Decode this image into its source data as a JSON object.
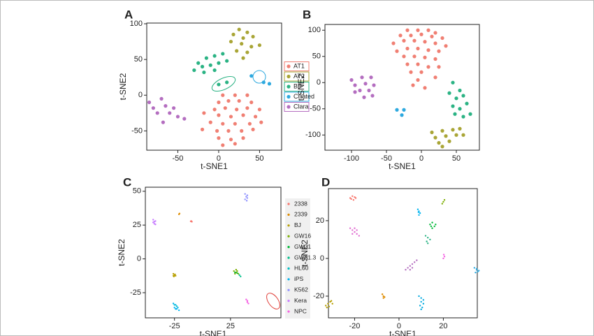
{
  "chart_data": [
    {
      "type": "scatter",
      "panel": "A",
      "x_label": "t-SNE1",
      "y_label": "t-SNE2",
      "xlim": [
        -88,
        77
      ],
      "ylim": [
        -77,
        101
      ],
      "xticks": [
        -50,
        0,
        50
      ],
      "yticks": [
        -50,
        0,
        50,
        100
      ],
      "legend": "right-box",
      "series": [
        {
          "name": "AT1",
          "color": "#f07f73",
          "x": [
            5,
            20,
            35,
            0,
            12,
            25,
            40,
            -5,
            8,
            22,
            35,
            50,
            -18,
            0,
            15,
            30,
            45,
            -10,
            5,
            20,
            38,
            52,
            -20,
            -2,
            12,
            28,
            42,
            0,
            15,
            30,
            5,
            20
          ],
          "y": [
            0,
            0,
            0,
            -10,
            -8,
            -8,
            -10,
            -20,
            -18,
            -20,
            -18,
            -20,
            -25,
            -28,
            -30,
            -28,
            -30,
            -38,
            -40,
            -40,
            -40,
            -38,
            -48,
            -50,
            -50,
            -50,
            -48,
            -60,
            -62,
            -60,
            -70,
            -68
          ]
        },
        {
          "name": "AT2",
          "color": "#a9a536",
          "x": [
            25,
            35,
            18,
            30,
            42,
            15,
            28,
            40,
            50,
            22,
            35,
            30
          ],
          "y": [
            92,
            88,
            85,
            80,
            82,
            75,
            72,
            68,
            70,
            62,
            60,
            52
          ]
        },
        {
          "name": "BP",
          "color": "#2bb384",
          "x": [
            -25,
            -15,
            -5,
            5,
            -20,
            -10,
            0,
            10,
            -30,
            -18,
            -5,
            0,
            10
          ],
          "y": [
            45,
            52,
            55,
            58,
            40,
            42,
            45,
            48,
            35,
            32,
            35,
            15,
            18
          ]
        },
        {
          "name": "Ciliated",
          "color": "#2ea9df",
          "x": [
            40,
            55,
            62
          ],
          "y": [
            27,
            18,
            16
          ]
        },
        {
          "name": "Clara",
          "color": "#b46ec0",
          "x": [
            -85,
            -70,
            -80,
            -65,
            -55,
            -75,
            -60,
            -50,
            -68,
            -42
          ],
          "y": [
            -10,
            -5,
            -18,
            -15,
            -18,
            -25,
            -25,
            -30,
            -38,
            -33
          ]
        }
      ]
    },
    {
      "type": "scatter",
      "panel": "B",
      "x_label": "t-SNE1",
      "y_label": "t-SNE2",
      "xlim": [
        -138,
        83
      ],
      "ylim": [
        -129,
        111
      ],
      "xticks": [
        -100,
        -50,
        0,
        50
      ],
      "yticks": [
        -100,
        -50,
        0,
        50,
        100
      ],
      "series": [
        {
          "color": "#f07f73",
          "x": [
            -20,
            -5,
            10,
            20,
            -30,
            -15,
            0,
            15,
            30,
            -40,
            -25,
            -10,
            5,
            20,
            35,
            -35,
            -20,
            -5,
            10,
            25,
            -25,
            -10,
            5,
            20,
            -20,
            -5,
            10,
            25,
            -15,
            0,
            -5,
            5,
            -12,
            20
          ],
          "y": [
            100,
            100,
            100,
            95,
            90,
            90,
            92,
            88,
            85,
            75,
            80,
            80,
            78,
            75,
            70,
            60,
            65,
            65,
            62,
            60,
            50,
            50,
            48,
            45,
            35,
            35,
            30,
            30,
            20,
            20,
            5,
            -10,
            -5,
            10
          ]
        },
        {
          "color": "#a9a536",
          "x": [
            15,
            30,
            45,
            55,
            20,
            35,
            50,
            60,
            25,
            40,
            30
          ],
          "y": [
            -95,
            -92,
            -90,
            -88,
            -105,
            -102,
            -100,
            -100,
            -115,
            -112,
            -122
          ]
        },
        {
          "color": "#2bb384",
          "x": [
            45,
            55,
            40,
            60,
            50,
            65,
            45,
            55,
            70,
            60,
            48
          ],
          "y": [
            0,
            -15,
            -20,
            -25,
            -30,
            -40,
            -45,
            -50,
            -60,
            -65,
            -60
          ]
        },
        {
          "color": "#2ea9df",
          "x": [
            -35,
            -25,
            -28
          ],
          "y": [
            -52,
            -52,
            -62
          ]
        },
        {
          "color": "#b46ec0",
          "x": [
            -100,
            -85,
            -72,
            -95,
            -80,
            -68,
            -88,
            -75,
            -95,
            -82,
            -70
          ],
          "y": [
            5,
            10,
            10,
            -5,
            -2,
            -5,
            -15,
            -15,
            -18,
            -28,
            -25
          ]
        }
      ]
    },
    {
      "type": "scatter",
      "panel": "C",
      "x_label": "t-SNE1",
      "y_label": "t-SNE2",
      "xlim": [
        -51,
        70
      ],
      "ylim": [
        -43.6,
        53
      ],
      "xticks": [
        -25,
        25
      ],
      "yticks": [
        -25,
        0,
        25,
        50
      ],
      "legend": "right-list",
      "series": [
        {
          "name": "2338",
          "color": "#f8766d",
          "x": [
            -10,
            -9.5,
            -10.5
          ],
          "y": [
            28,
            27.5,
            27.8
          ]
        },
        {
          "name": "2339",
          "color": "#de8c00",
          "x": [
            -21,
            -20.5
          ],
          "y": [
            33,
            33.5
          ]
        },
        {
          "name": "BJ",
          "color": "#b79f00",
          "x": [
            -26,
            -25,
            -24,
            -25.5,
            -24.5,
            -26
          ],
          "y": [
            -11,
            -12,
            -12.5,
            -13,
            -11.5,
            -12.5
          ]
        },
        {
          "name": "GW16",
          "color": "#7cae00",
          "x": [
            28,
            30,
            29,
            31,
            32,
            30
          ],
          "y": [
            -9,
            -10,
            -11,
            -9,
            -11,
            -8
          ]
        },
        {
          "name": "GW21",
          "color": "#00ba38",
          "x": [
            29,
            31
          ],
          "y": [
            -10,
            -10.5
          ]
        },
        {
          "name": "GW21.3",
          "color": "#00c08b",
          "x": [
            33,
            34
          ],
          "y": [
            -12,
            -13
          ]
        },
        {
          "name": "HL60",
          "color": "#00bfc4",
          "x": [
            -25,
            -23
          ],
          "y": [
            -34,
            -35
          ]
        },
        {
          "name": "iPS",
          "color": "#00b4f0",
          "x": [
            -26,
            -24,
            -22,
            -25,
            -23,
            -21,
            -24
          ],
          "y": [
            -33,
            -34,
            -36,
            -36,
            -37,
            -38,
            -37
          ]
        },
        {
          "name": "K562",
          "color": "#8f91ff",
          "x": [
            38,
            39,
            40,
            38,
            39.5,
            40
          ],
          "y": [
            44,
            46,
            47,
            48,
            43,
            45
          ]
        },
        {
          "name": "Kera",
          "color": "#c77cff",
          "x": [
            -44,
            -43,
            -42,
            -44,
            -43,
            -42
          ],
          "y": [
            27,
            26,
            28,
            29,
            27.5,
            25.5
          ]
        },
        {
          "name": "NPC",
          "color": "#f564e3",
          "x": [
            39,
            40,
            41,
            40
          ],
          "y": [
            -30,
            -32,
            -33,
            -31
          ]
        }
      ]
    },
    {
      "type": "scatter",
      "panel": "D",
      "x_label": "t-SNE1",
      "y_label": "t-SNE2",
      "xlim": [
        -31.8,
        35.3
      ],
      "ylim": [
        -31.5,
        37
      ],
      "xticks": [
        -20,
        0,
        20
      ],
      "yticks": [
        -20,
        0,
        20
      ],
      "series": [
        {
          "color": "#f8766d",
          "x": [
            -22,
            -21,
            -20,
            -21.5,
            -20.5,
            -19.5
          ],
          "y": [
            32,
            33,
            32.5,
            31.5,
            31,
            32
          ]
        },
        {
          "color": "#b79f00",
          "x": [
            -33,
            -32,
            -31,
            -30,
            -32.5,
            -31.5,
            -30.5
          ],
          "y": [
            -25,
            -24,
            -23,
            -24,
            -26,
            -25.5,
            -22.5
          ]
        },
        {
          "color": "#de8c00",
          "x": [
            -7.5,
            -7,
            -6.5,
            -7
          ],
          "y": [
            -19,
            -20,
            -20.5,
            -21
          ]
        },
        {
          "color": "#e06bd0",
          "x": [
            -22,
            -21,
            -20,
            -19,
            -18,
            -21,
            -20,
            -19
          ],
          "y": [
            16,
            15,
            14,
            13,
            12,
            13,
            16,
            15
          ]
        },
        {
          "color": "#b46ec0",
          "x": [
            3,
            4,
            5,
            6,
            7,
            8,
            5,
            6
          ],
          "y": [
            -6,
            -5,
            -4,
            -3,
            -2,
            -1,
            -6,
            -5
          ]
        },
        {
          "color": "#00b4f0",
          "x": [
            8.5,
            9,
            9.5,
            9,
            8.8
          ],
          "y": [
            26,
            25,
            24,
            23,
            24.5
          ]
        },
        {
          "color": "#00a9e0",
          "x": [
            9,
            10,
            11,
            10,
            9.5,
            10.5,
            10,
            11
          ],
          "y": [
            -20,
            -21,
            -22,
            -23,
            -25,
            -26,
            -27,
            -24
          ]
        },
        {
          "color": "#00ba38",
          "x": [
            14,
            15,
            16,
            15,
            16.5,
            14.5
          ],
          "y": [
            18,
            19,
            17,
            16,
            18,
            17
          ]
        },
        {
          "color": "#2bb384",
          "x": [
            12,
            13,
            14,
            13,
            12.5
          ],
          "y": [
            12,
            11,
            10,
            8,
            9
          ]
        },
        {
          "color": "#7cae00",
          "x": [
            19.5,
            20,
            20.5
          ],
          "y": [
            29,
            30,
            31
          ]
        },
        {
          "color": "#f564e3",
          "x": [
            20,
            20.5,
            20.2
          ],
          "y": [
            0,
            1,
            2
          ]
        },
        {
          "color": "#2ea9df",
          "x": [
            34,
            35,
            35.5,
            34.5,
            35,
            36
          ],
          "y": [
            -5,
            -6,
            -7,
            -7.5,
            -5.5,
            -6.5
          ]
        }
      ]
    }
  ]
}
